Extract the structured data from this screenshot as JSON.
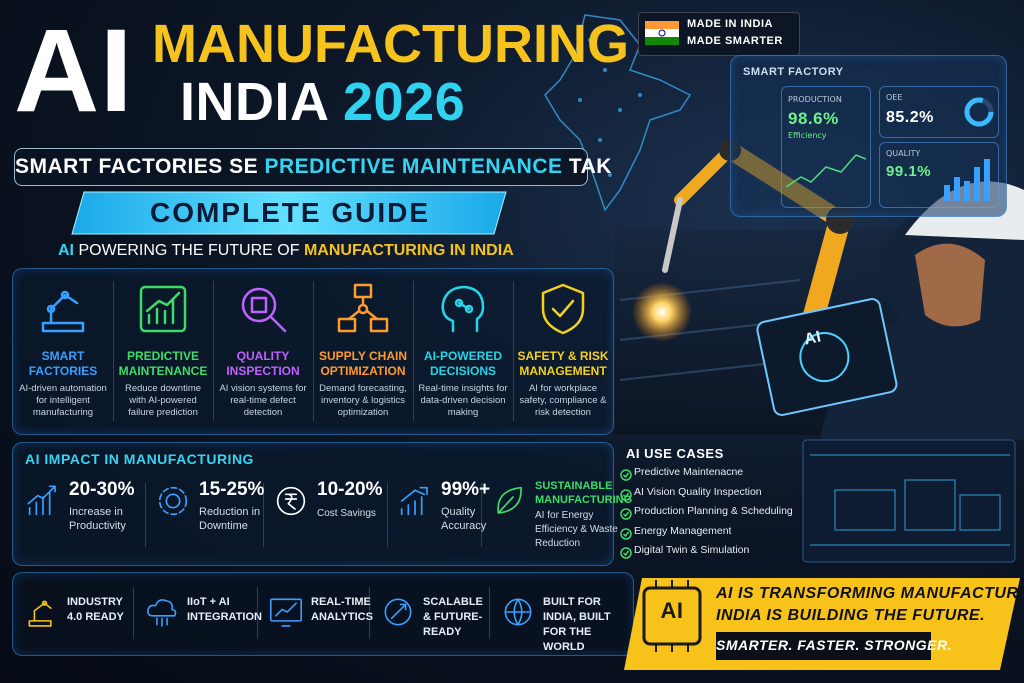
{
  "title": {
    "ai": "AI",
    "line1": "MANUFACTURING",
    "line2": "INDIA",
    "year": "2026"
  },
  "subtitle": {
    "part1": "SMART FACTORIES SE",
    "highlight": "PREDICTIVE MAINTENANCE",
    "part2": "TAK"
  },
  "banner": "COMPLETE GUIDE",
  "tagline": {
    "ai": "AI",
    "middle": "POWERING THE FUTURE OF",
    "highlight": "MANUFACTURING IN INDIA"
  },
  "badge": {
    "line1": "MADE IN INDIA",
    "line2": "MADE SMARTER"
  },
  "dashboard": {
    "title": "SMART FACTORY",
    "production_label": "PRODUCTION",
    "production_value": "98.6%",
    "production_sub": "Efficiency",
    "oee_label": "OEE",
    "oee_value": "85.2%",
    "quality_label": "QUALITY",
    "quality_value": "99.1%"
  },
  "tablet": "AI",
  "features": [
    {
      "title": "SMART FACTORIES",
      "desc": "AI-driven automation for intelligent manufacturing"
    },
    {
      "title": "PREDICTIVE MAINTENANCE",
      "desc": "Reduce downtime with AI-powered failure prediction"
    },
    {
      "title": "QUALITY INSPECTION",
      "desc": "AI vision systems for real-time defect detection"
    },
    {
      "title": "SUPPLY CHAIN OPTIMIZATION",
      "desc": "Demand forecasting, inventory & logistics optimization"
    },
    {
      "title": "AI-POWERED DECISIONS",
      "desc": "Real-time insights for data-driven decision making"
    },
    {
      "title": "SAFETY & RISK MANAGEMENT",
      "desc": "AI for workplace safety, compliance & risk detection"
    }
  ],
  "impact": {
    "title": "AI IMPACT IN MANUFACTURING",
    "stats": [
      {
        "value": "20-30%",
        "label": "Increase in Productivity"
      },
      {
        "value": "15-25%",
        "label": "Reduction in Downtime"
      },
      {
        "value": "10-20%",
        "label": "Cost Savings"
      },
      {
        "value": "99%+",
        "label": "Quality Accuracy"
      },
      {
        "value": "SUSTAINABLE MANUFACTURING",
        "label": "AI for Energy Efficiency & Waste Reduction"
      }
    ]
  },
  "use_cases": {
    "title": "AI USE CASES",
    "items": [
      "Predictive Maintenacne",
      "AI Vision Quality Inspection",
      "Production Planning & Scheduling",
      "Energy Management",
      "Digital Twin & Simulation"
    ]
  },
  "footer": {
    "items": [
      "INDUSTRY 4.0 READY",
      "IIoT + AI INTEGRATION",
      "REAL-TIME ANALYTICS",
      "SCALABLE & FUTURE-READY",
      "BUILT FOR INDIA, BUILT FOR THE WORLD"
    ],
    "banner_icon": "AI",
    "banner_line1": "AI IS TRANSFORMING MANUFACTURING.",
    "banner_line2": "INDIA IS BUILDING THE FUTURE.",
    "banner_tag": "SMARTER. FASTER. STRONGER."
  }
}
